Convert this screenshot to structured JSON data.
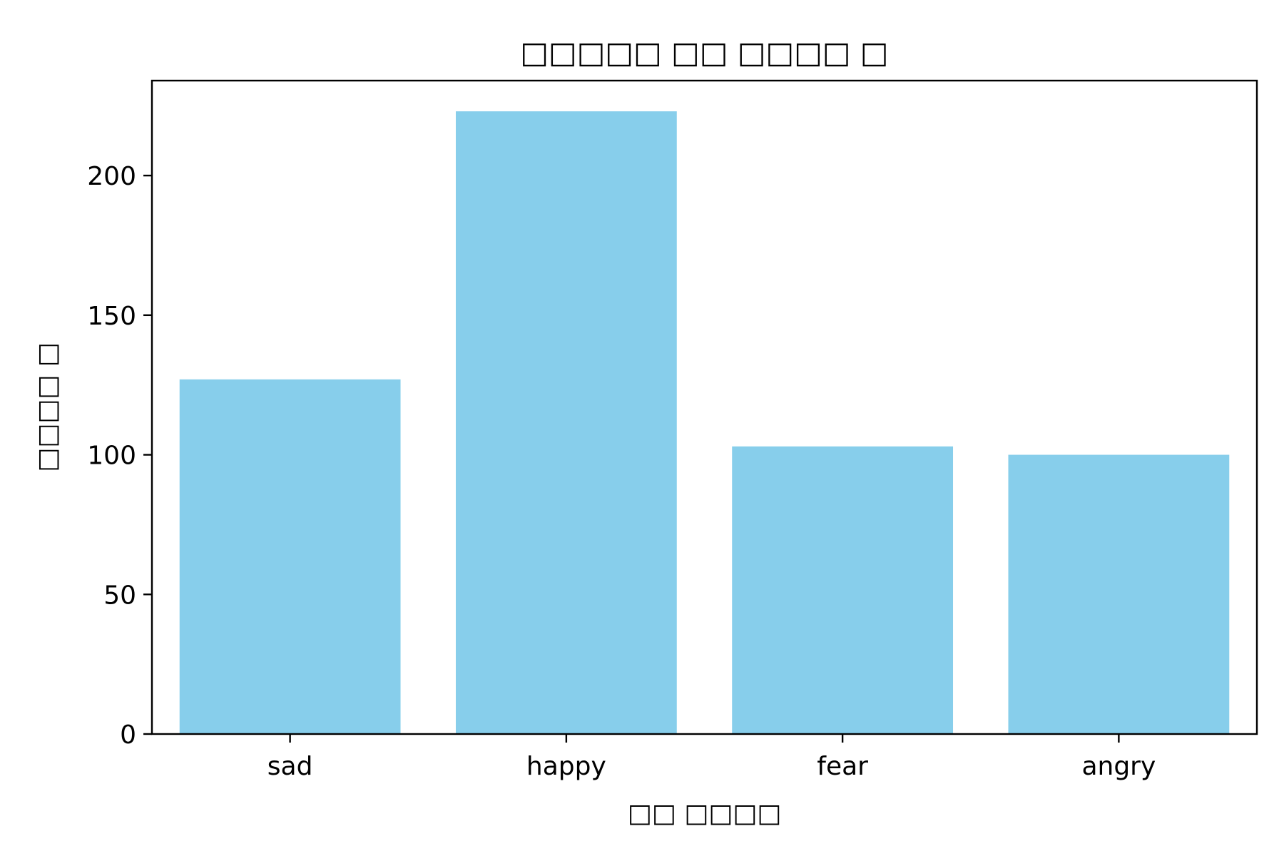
{
  "chart_data": {
    "type": "bar",
    "title": "□□□□□ □□ □□□□ □",
    "xlabel": "□□ □□□□",
    "ylabel": "□□□□ □",
    "categories": [
      "sad",
      "happy",
      "fear",
      "angry"
    ],
    "values": [
      127,
      223,
      103,
      100
    ],
    "ylim": [
      0,
      234
    ],
    "yticks": [
      0,
      50,
      100,
      150,
      200
    ],
    "bar_color": "#87CEEB",
    "grid": false,
    "legend": "none"
  }
}
